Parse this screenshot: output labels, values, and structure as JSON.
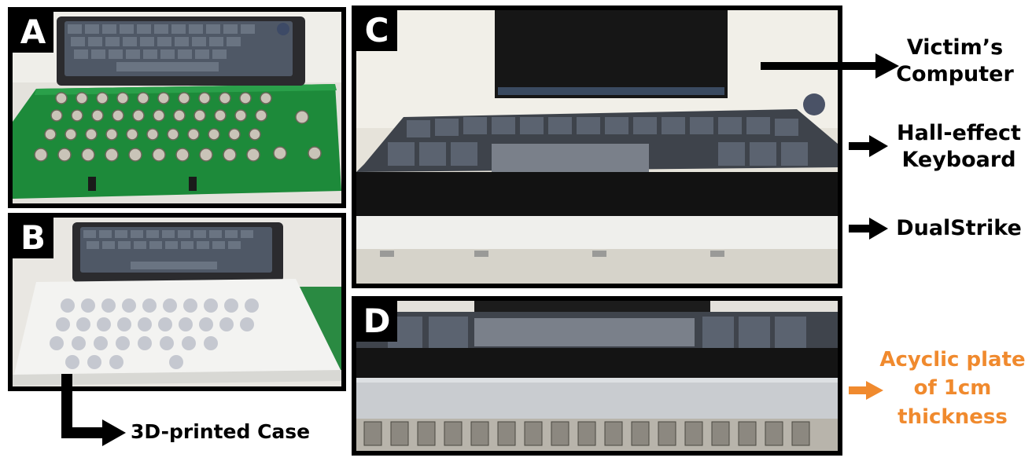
{
  "panels": {
    "a": {
      "letter": "A"
    },
    "b": {
      "letter": "B"
    },
    "c": {
      "letter": "C"
    },
    "d": {
      "letter": "D"
    }
  },
  "labels": {
    "victim_line1": "Victim’s",
    "victim_line2": "Computer",
    "keyboard_line1": "Hall-effect",
    "keyboard_line2": "Keyboard",
    "dualstrike": "DualStrike",
    "acrylic_line1": "Acyclic plate",
    "acrylic_line2": "of 1cm",
    "acrylic_line3": "thickness",
    "case": "3D-printed Case"
  },
  "colors": {
    "border": "#000000",
    "accent_orange": "#f08a2e",
    "pcb_green": "#1f8a3a",
    "keycap_gray": "#5d6673",
    "case_white": "#ececec"
  }
}
